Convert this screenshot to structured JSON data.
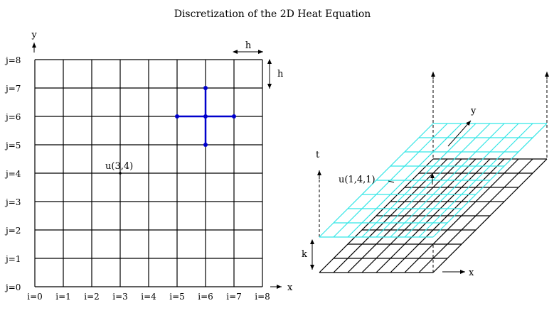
{
  "title": "Discretization of the 2D Heat Equation",
  "left_grid": {
    "axis_y_label": "y",
    "axis_x_label": "x",
    "spacing_label_h_top": "h",
    "spacing_label_h_right": "h",
    "row_labels": [
      "j=0",
      "j=1",
      "j=2",
      "j=3",
      "j=4",
      "j=5",
      "j=6",
      "j=7",
      "j=8"
    ],
    "col_labels": [
      "i=0",
      "i=1",
      "i=2",
      "i=3",
      "i=4",
      "i=5",
      "i=6",
      "i=7",
      "i=8"
    ],
    "point_label": "u(3,4)",
    "stencil_color": "#0000cc"
  },
  "right_grid": {
    "axis_t_label": "t",
    "axis_x_label": "x",
    "axis_y_label": "y",
    "time_step_label": "k",
    "point_label": "u(1,4,1)",
    "upper_layer_color": "#33e6e6",
    "lower_layer_color": "#000000"
  }
}
